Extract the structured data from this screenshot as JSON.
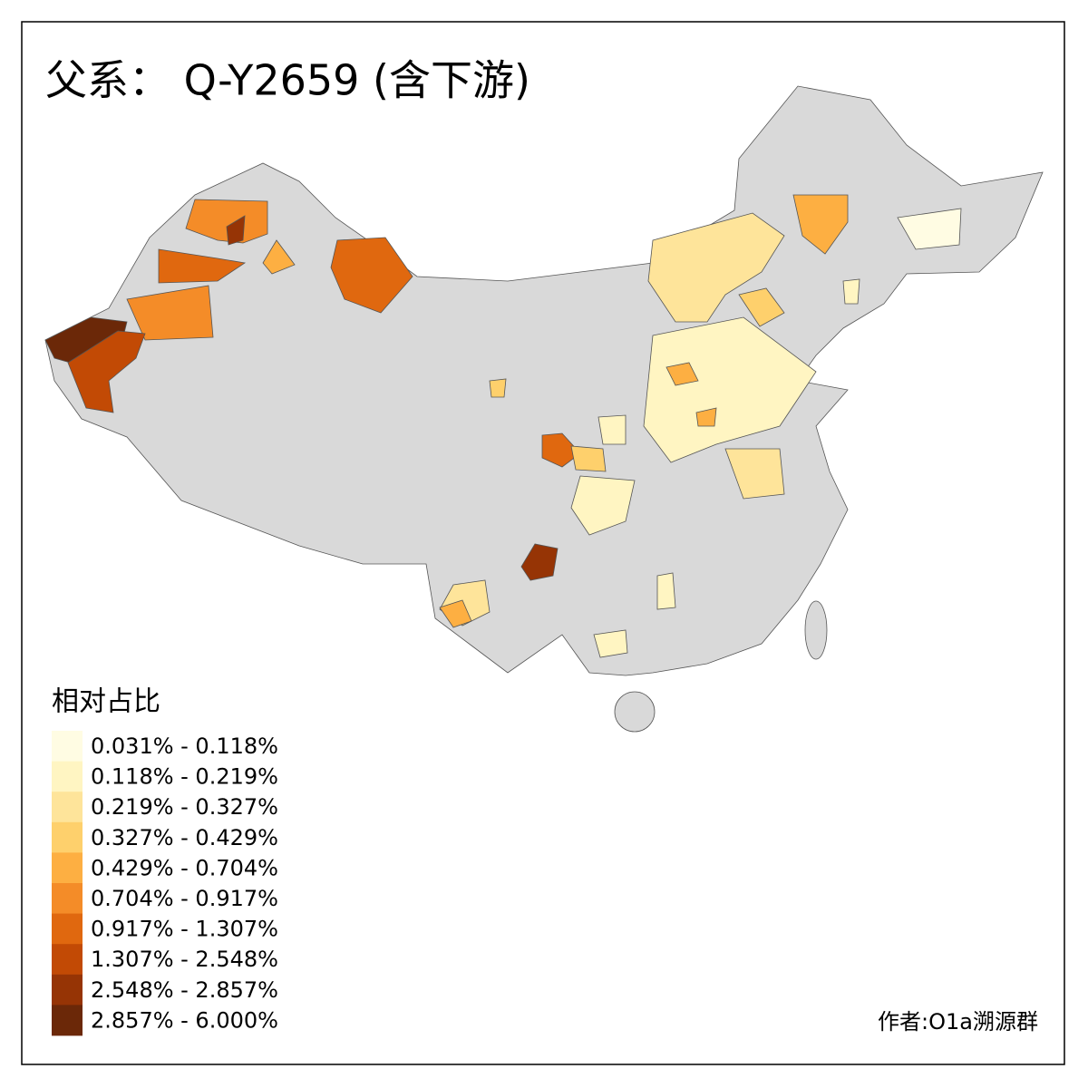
{
  "title": "父系： Q-Y2659 (含下游)",
  "legend": {
    "title": "相对占比",
    "items": [
      {
        "label": "0.031% - 0.118%",
        "color": "#fffce3"
      },
      {
        "label": "0.118% - 0.219%",
        "color": "#fff5c2"
      },
      {
        "label": "0.219% - 0.327%",
        "color": "#fee49a"
      },
      {
        "label": "0.327% - 0.429%",
        "color": "#fed06c"
      },
      {
        "label": "0.429% - 0.704%",
        "color": "#fdaf42"
      },
      {
        "label": "0.704% - 0.917%",
        "color": "#f48c28"
      },
      {
        "label": "0.917% - 1.307%",
        "color": "#e0680f"
      },
      {
        "label": "1.307% - 2.548%",
        "color": "#c24a05"
      },
      {
        "label": "2.548% - 2.857%",
        "color": "#963405"
      },
      {
        "label": "2.857% - 6.000%",
        "color": "#6b2808"
      }
    ]
  },
  "credit": "作者:O1a溯源群"
}
